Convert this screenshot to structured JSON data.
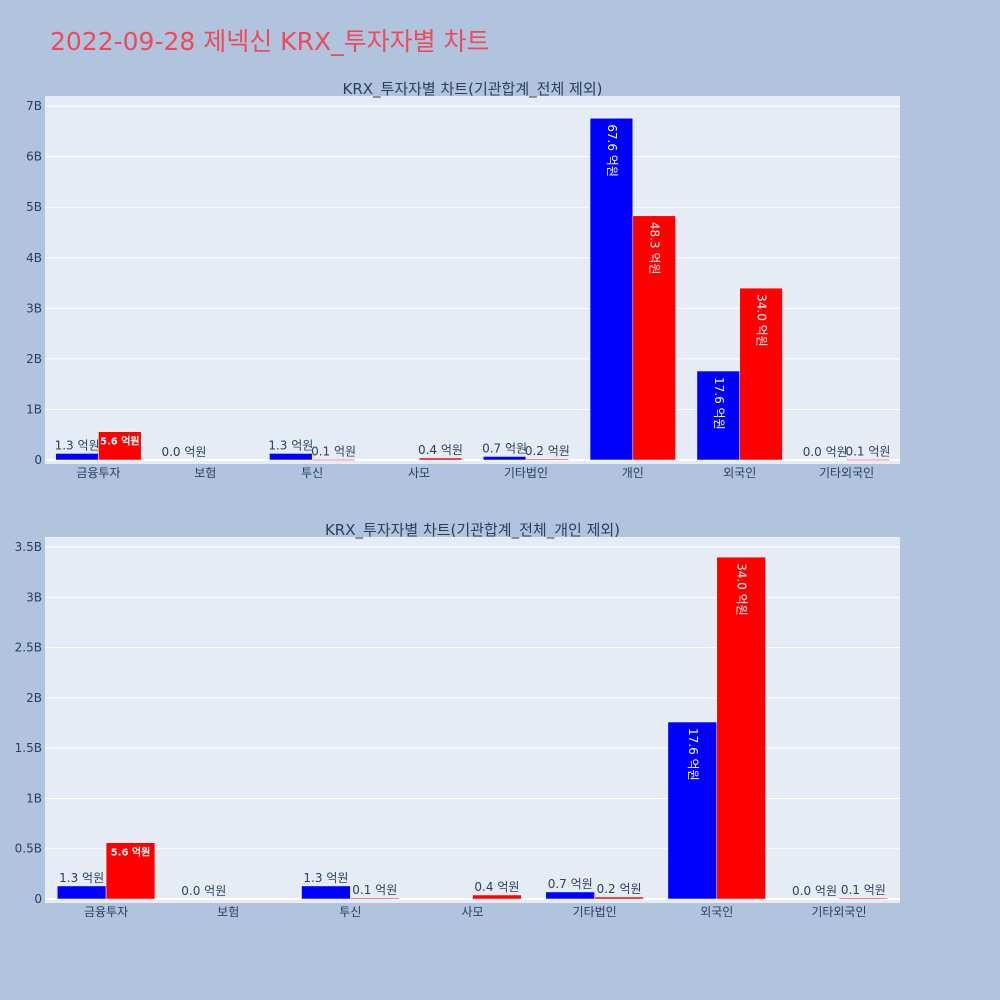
{
  "page": {
    "title": "2022-09-28 제넥신 KRX_투자자별 차트"
  },
  "colors": {
    "buy": "#0000ff",
    "sell": "#ff0000",
    "page_background": "#b0c4de",
    "plot_background": "#e5ecf6",
    "title": "#ef4a5a",
    "text": "#2a3f5f"
  },
  "chart_data": [
    {
      "type": "bar",
      "title": "KRX_투자자별 차트(기관합계_전체 제외)",
      "categories": [
        "금융투자",
        "보험",
        "투신",
        "사모",
        "기타법인",
        "개인",
        "외국인",
        "기타외국인"
      ],
      "series": [
        {
          "color": "#0000ff",
          "values": [
            130000000,
            0,
            130000000,
            0,
            70000000,
            6760000000,
            1760000000,
            0
          ],
          "labels": [
            "1.3 억원",
            "0.0 억원",
            "1.3 억원",
            "",
            "0.7 억원",
            "67.6 억원",
            "17.6 억원",
            "0.0 억원"
          ]
        },
        {
          "color": "#ff0000",
          "values": [
            560000000,
            0,
            10000000,
            40000000,
            20000000,
            4830000000,
            3400000000,
            10000000
          ],
          "labels": [
            "5.6 억원",
            "",
            "0.1 억원",
            "0.4 억원",
            "0.2 억원",
            "48.3 억원",
            "34.0 억원",
            "0.1 억원"
          ]
        }
      ],
      "ylim": [
        0,
        7200000000
      ],
      "yticks": [
        0,
        1000000000,
        2000000000,
        3000000000,
        4000000000,
        5000000000,
        6000000000,
        7000000000
      ],
      "ytick_labels": [
        "0",
        "1B",
        "2B",
        "3B",
        "4B",
        "5B",
        "6B",
        "7B"
      ],
      "grid": true,
      "barmode": "group"
    },
    {
      "type": "bar",
      "title": "KRX_투자자별 차트(기관합계_전체_개인 제외)",
      "categories": [
        "금융투자",
        "보험",
        "투신",
        "사모",
        "기타법인",
        "외국인",
        "기타외국인"
      ],
      "series": [
        {
          "color": "#0000ff",
          "values": [
            130000000,
            0,
            130000000,
            0,
            70000000,
            1760000000,
            0
          ],
          "labels": [
            "1.3 억원",
            "0.0 억원",
            "1.3 억원",
            "",
            "0.7 억원",
            "17.6 억원",
            "0.0 억원"
          ]
        },
        {
          "color": "#ff0000",
          "values": [
            560000000,
            0,
            10000000,
            40000000,
            20000000,
            3400000000,
            10000000
          ],
          "labels": [
            "5.6 억원",
            "",
            "0.1 억원",
            "0.4 억원",
            "0.2 억원",
            "34.0 억원",
            "0.1 억원"
          ]
        }
      ],
      "ylim": [
        0,
        3600000000
      ],
      "yticks": [
        0,
        500000000,
        1000000000,
        1500000000,
        2000000000,
        2500000000,
        3000000000,
        3500000000
      ],
      "ytick_labels": [
        "0",
        "0.5B",
        "1B",
        "1.5B",
        "2B",
        "2.5B",
        "3B",
        "3.5B"
      ],
      "grid": true,
      "barmode": "group"
    }
  ]
}
